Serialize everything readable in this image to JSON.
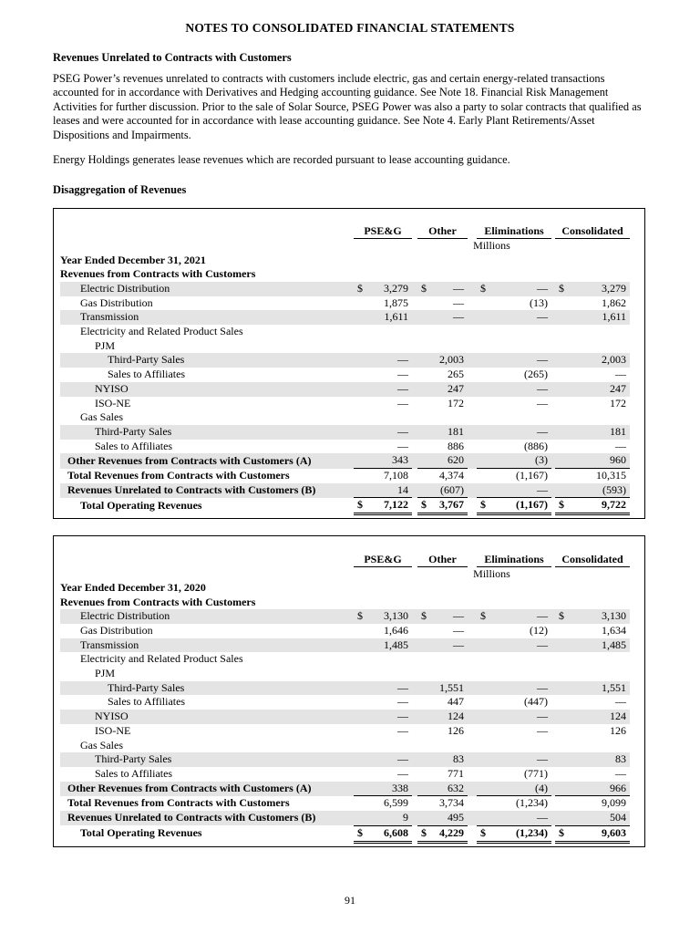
{
  "page": {
    "title": "NOTES TO CONSOLIDATED FINANCIAL STATEMENTS",
    "page_number": "91"
  },
  "sections": {
    "heading_revenues_unrelated": "Revenues Unrelated to Contracts with Customers",
    "paragraph_1": "PSEG Power’s revenues unrelated to contracts with customers include electric, gas and certain energy-related transactions accounted for in accordance with Derivatives and Hedging accounting guidance. See Note 18. Financial Risk Management Activities for further discussion. Prior to the sale of Solar Source, PSEG Power was also a party to solar contracts that qualified as leases and were accounted for in accordance with lease accounting guidance. See Note 4. Early Plant Retirements/Asset Dispositions and Impairments.",
    "paragraph_2": "Energy Holdings generates lease revenues which are recorded pursuant to lease accounting guidance.",
    "heading_disaggregation": "Disaggregation of Revenues"
  },
  "table_columns": [
    "PSE&G",
    "Other",
    "Eliminations",
    "Consolidated"
  ],
  "column_keys": [
    "pseg",
    "other",
    "eliminations",
    "consolidated"
  ],
  "unit_label": "Millions",
  "colors": {
    "row_shade": "#e4e4e4",
    "border": "#000000",
    "text": "#000000"
  },
  "tables": [
    {
      "id": "2021",
      "year_label": "Year Ended December 31, 2021",
      "section_label": "Revenues from Contracts with Customers",
      "rows": [
        {
          "label": "Electric Distribution",
          "indent": 1,
          "shaded": true,
          "dollar": true,
          "values": [
            "3,279",
            "—",
            "—",
            "3,279"
          ]
        },
        {
          "label": "Gas Distribution",
          "indent": 1,
          "values": [
            "1,875",
            "—",
            "(13)",
            "1,862"
          ]
        },
        {
          "label": "Transmission",
          "indent": 1,
          "shaded": true,
          "values": [
            "1,611",
            "—",
            "—",
            "1,611"
          ]
        },
        {
          "label": "Electricity and Related Product Sales",
          "indent": 1,
          "values": [
            "",
            "",
            "",
            ""
          ]
        },
        {
          "label": "PJM",
          "indent": 2,
          "values": [
            "",
            "",
            "",
            ""
          ]
        },
        {
          "label": "Third-Party Sales",
          "indent": 3,
          "shaded": true,
          "values": [
            "—",
            "2,003",
            "—",
            "2,003"
          ]
        },
        {
          "label": "Sales to Affiliates",
          "indent": 3,
          "values": [
            "—",
            "265",
            "(265)",
            "—"
          ]
        },
        {
          "label": "NYISO",
          "indent": 2,
          "shaded": true,
          "values": [
            "—",
            "247",
            "—",
            "247"
          ]
        },
        {
          "label": "ISO-NE",
          "indent": 2,
          "values": [
            "—",
            "172",
            "—",
            "172"
          ]
        },
        {
          "label": "Gas Sales",
          "indent": 1,
          "values": [
            "",
            "",
            "",
            ""
          ]
        },
        {
          "label": "Third-Party Sales",
          "indent": 2,
          "shaded": true,
          "values": [
            "—",
            "181",
            "—",
            "181"
          ]
        },
        {
          "label": "Sales to Affiliates",
          "indent": 2,
          "values": [
            "—",
            "886",
            "(886)",
            "—"
          ]
        },
        {
          "label": "Other Revenues from Contracts with Customers (A)",
          "indent": 0,
          "bold": true,
          "shaded": true,
          "rule": "single",
          "values": [
            "343",
            "620",
            "(3)",
            "960"
          ]
        },
        {
          "label": "Total Revenues from Contracts with Customers",
          "indent": 0,
          "bold": true,
          "values": [
            "7,108",
            "4,374",
            "(1,167)",
            "10,315"
          ]
        },
        {
          "label": "Revenues Unrelated to Contracts with Customers (B)",
          "indent": 0,
          "bold": true,
          "shaded": true,
          "rule": "single",
          "values": [
            "14",
            "(607)",
            "—",
            "(593)"
          ]
        },
        {
          "label": "Total Operating Revenues",
          "indent": 1,
          "bold": true,
          "vbold": true,
          "dollar": true,
          "rule": "double",
          "values": [
            "7,122",
            "3,767",
            "(1,167)",
            "9,722"
          ]
        }
      ]
    },
    {
      "id": "2020",
      "year_label": "Year Ended December 31, 2020",
      "section_label": "Revenues from Contracts with Customers",
      "rows": [
        {
          "label": "Electric Distribution",
          "indent": 1,
          "shaded": true,
          "dollar": true,
          "values": [
            "3,130",
            "—",
            "—",
            "3,130"
          ]
        },
        {
          "label": "Gas Distribution",
          "indent": 1,
          "values": [
            "1,646",
            "—",
            "(12)",
            "1,634"
          ]
        },
        {
          "label": "Transmission",
          "indent": 1,
          "shaded": true,
          "values": [
            "1,485",
            "—",
            "—",
            "1,485"
          ]
        },
        {
          "label": "Electricity and Related Product Sales",
          "indent": 1,
          "values": [
            "",
            "",
            "",
            ""
          ]
        },
        {
          "label": "PJM",
          "indent": 2,
          "values": [
            "",
            "",
            "",
            ""
          ]
        },
        {
          "label": "Third-Party Sales",
          "indent": 3,
          "shaded": true,
          "values": [
            "—",
            "1,551",
            "—",
            "1,551"
          ]
        },
        {
          "label": "Sales to Affiliates",
          "indent": 3,
          "values": [
            "—",
            "447",
            "(447)",
            "—"
          ]
        },
        {
          "label": "NYISO",
          "indent": 2,
          "shaded": true,
          "values": [
            "—",
            "124",
            "—",
            "124"
          ]
        },
        {
          "label": "ISO-NE",
          "indent": 2,
          "values": [
            "—",
            "126",
            "—",
            "126"
          ]
        },
        {
          "label": "Gas Sales",
          "indent": 1,
          "values": [
            "",
            "",
            "",
            ""
          ]
        },
        {
          "label": "Third-Party Sales",
          "indent": 2,
          "shaded": true,
          "values": [
            "—",
            "83",
            "—",
            "83"
          ]
        },
        {
          "label": "Sales to Affiliates",
          "indent": 2,
          "values": [
            "—",
            "771",
            "(771)",
            "—"
          ]
        },
        {
          "label": "Other Revenues from Contracts with Customers (A)",
          "indent": 0,
          "bold": true,
          "shaded": true,
          "rule": "single",
          "values": [
            "338",
            "632",
            "(4)",
            "966"
          ]
        },
        {
          "label": "Total Revenues from Contracts with Customers",
          "indent": 0,
          "bold": true,
          "values": [
            "6,599",
            "3,734",
            "(1,234)",
            "9,099"
          ]
        },
        {
          "label": "Revenues Unrelated to Contracts with Customers (B)",
          "indent": 0,
          "bold": true,
          "shaded": true,
          "rule": "single",
          "values": [
            "9",
            "495",
            "—",
            "504"
          ]
        },
        {
          "label": "Total Operating Revenues",
          "indent": 1,
          "bold": true,
          "vbold": true,
          "dollar": true,
          "rule": "double",
          "values": [
            "6,608",
            "4,229",
            "(1,234)",
            "9,603"
          ]
        }
      ]
    }
  ]
}
